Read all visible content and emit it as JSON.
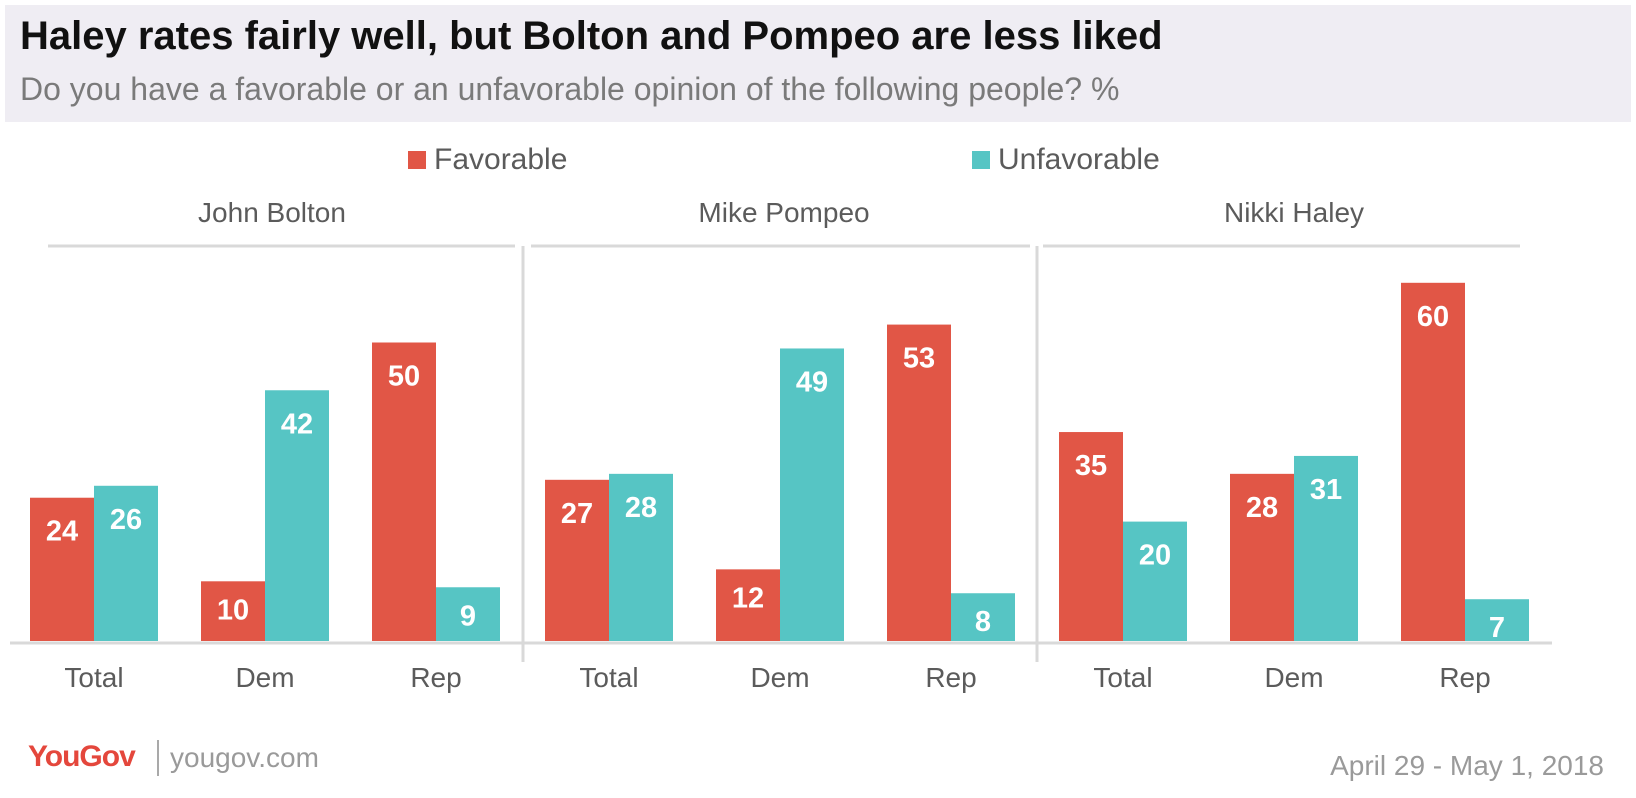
{
  "header": {
    "title": "Haley rates fairly well, but Bolton and Pompeo are less liked",
    "subtitle": "Do you have a favorable or an unfavorable opinion of the following people? %"
  },
  "legend": {
    "favorable": "Favorable",
    "unfavorable": "Unfavorable"
  },
  "colors": {
    "favorable": "#e15646",
    "unfavorable": "#56c5c4",
    "header_bg": "#efedf3",
    "rule": "#d9d9d9"
  },
  "footer": {
    "logo": "YouGov",
    "site": "yougov.com",
    "date": "April 29 - May 1, 2018"
  },
  "chart_data": {
    "type": "bar",
    "title": "Haley rates fairly well, but Bolton and Pompeo are less liked",
    "subtitle": "Do you have a favorable or an unfavorable opinion of the following people? %",
    "categories": [
      "Total",
      "Dem",
      "Rep"
    ],
    "legend_position": "top",
    "grid": false,
    "ylim": [
      0,
      65
    ],
    "panels": [
      {
        "name": "John Bolton",
        "series": [
          {
            "name": "Favorable",
            "values": [
              24,
              10,
              50
            ]
          },
          {
            "name": "Unfavorable",
            "values": [
              26,
              42,
              9
            ]
          }
        ]
      },
      {
        "name": "Mike Pompeo",
        "series": [
          {
            "name": "Favorable",
            "values": [
              27,
              12,
              53
            ]
          },
          {
            "name": "Unfavorable",
            "values": [
              28,
              49,
              8
            ]
          }
        ]
      },
      {
        "name": "Nikki Haley",
        "series": [
          {
            "name": "Favorable",
            "values": [
              35,
              28,
              60
            ]
          },
          {
            "name": "Unfavorable",
            "values": [
              20,
              31,
              7
            ]
          }
        ]
      }
    ]
  }
}
